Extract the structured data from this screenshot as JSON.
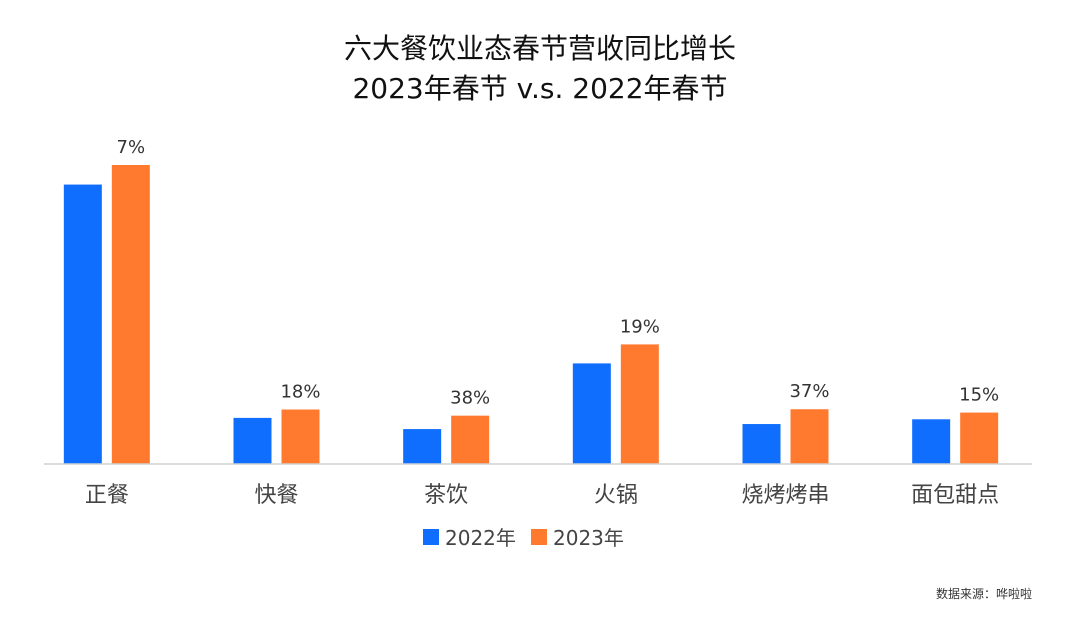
{
  "chart_data": {
    "type": "bar",
    "title": "六大餐饮业态春节营收同比增长",
    "subtitle": "2023年春节 v.s. 2022年春节",
    "categories": [
      "正餐",
      "快餐",
      "茶饮",
      "火锅",
      "烧烤烤串",
      "面包甜点"
    ],
    "series": [
      {
        "name": "2022年",
        "color": "#0f6efd",
        "values": [
          100,
          16.5,
          12.5,
          36,
          14.3,
          16
        ]
      },
      {
        "name": "2023年",
        "color": "#ff7a2f",
        "values": [
          107,
          19.5,
          17.3,
          42.8,
          19.6,
          18.4
        ]
      }
    ],
    "data_labels": [
      "7%",
      "18%",
      "38%",
      "19%",
      "37%",
      "15%"
    ],
    "ylim": [
      0,
      110
    ],
    "grid": false,
    "legend": "bottom-center"
  },
  "source_note": "数据来源：哗啦啦"
}
